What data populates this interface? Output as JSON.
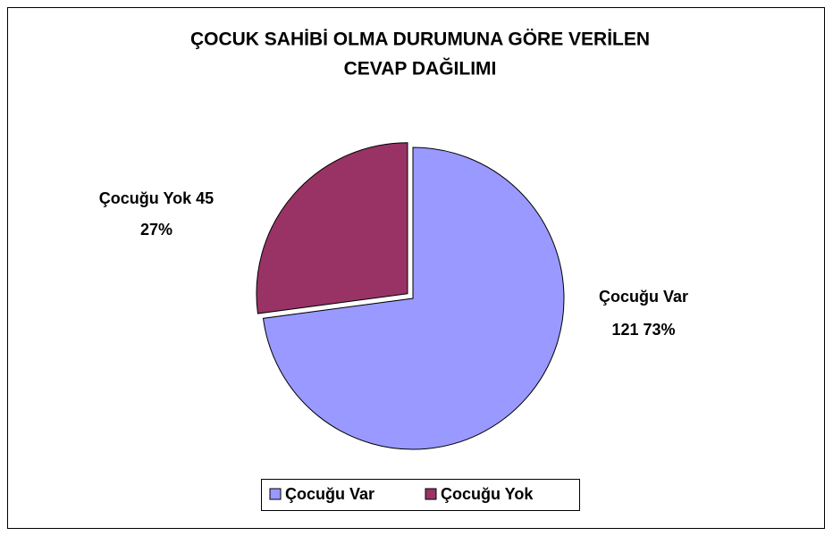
{
  "chart_data": {
    "type": "pie",
    "title_lines": [
      "ÇOCUK SAHİBİ OLMA DURUMUNA GÖRE VERİLEN",
      "CEVAP DAĞILIMI"
    ],
    "categories": [
      "Çocuğu Var",
      "Çocuğu Yok"
    ],
    "values": [
      121,
      45
    ],
    "percentages": [
      73,
      27
    ],
    "percentage_labels": [
      "73%",
      "27%"
    ],
    "colors": [
      "#9999ff",
      "#993366"
    ],
    "exploded": [
      false,
      true
    ],
    "legend": "bottom"
  }
}
